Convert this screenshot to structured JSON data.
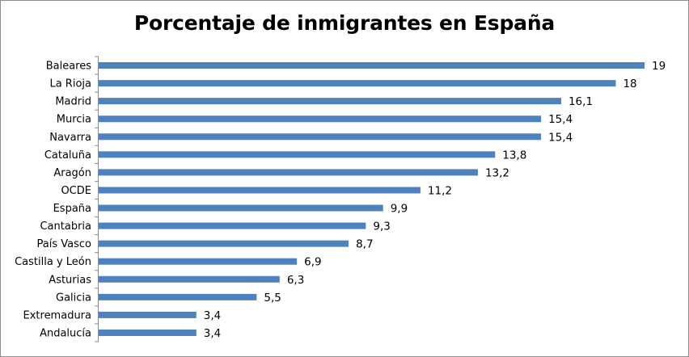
{
  "chart_data": {
    "type": "bar",
    "orientation": "horizontal",
    "title": "Porcentaje de inmigrantes en España",
    "xlabel": "",
    "ylabel": "",
    "xlim": [
      0,
      19
    ],
    "categories": [
      "Baleares",
      "La Rioja",
      "Madrid",
      "Murcia",
      "Navarra",
      "Cataluña",
      "Aragón",
      "OCDE",
      "España",
      "Cantabria",
      "País Vasco",
      "Castilla y León",
      "Asturias",
      "Galicia",
      "Extremadura",
      "Andalucía"
    ],
    "values": [
      19,
      18,
      16.1,
      15.4,
      15.4,
      13.8,
      13.2,
      11.2,
      9.9,
      9.3,
      8.7,
      6.9,
      6.3,
      5.5,
      3.4,
      3.4
    ],
    "value_labels": [
      "19",
      "18",
      "16,1",
      "15,4",
      "15,4",
      "13,8",
      "13,2",
      "11,2",
      "9,9",
      "9,3",
      "8,7",
      "6,9",
      "6,3",
      "5,5",
      "3,4",
      "3,4"
    ],
    "bar_color": "#4f81bd",
    "grid": false,
    "legend": "none"
  }
}
